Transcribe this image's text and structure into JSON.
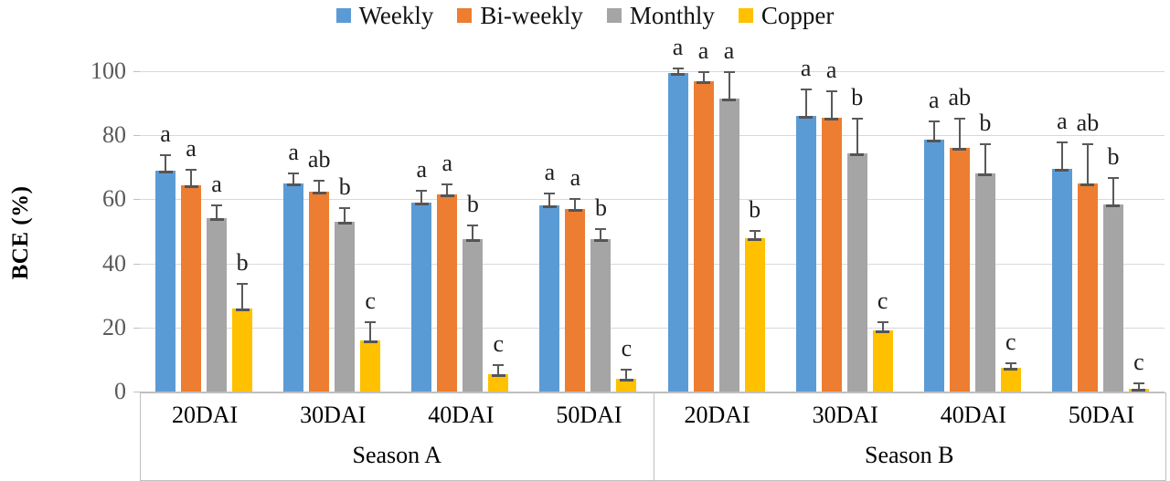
{
  "y_axis": {
    "label": "BCE (%)"
  },
  "chart_data": {
    "type": "bar",
    "title": "",
    "xlabel": "",
    "ylabel": "BCE (%)",
    "ylim": [
      0,
      100
    ],
    "yticks": [
      0,
      20,
      40,
      60,
      80,
      100
    ],
    "grid": true,
    "legend_position": "top",
    "categories": [
      "20DAI",
      "30DAI",
      "40DAI",
      "50DAI",
      "20DAI",
      "30DAI",
      "40DAI",
      "50DAI"
    ],
    "group_labels": [
      "Season A",
      "Season B"
    ],
    "series": [
      {
        "name": "Weekly",
        "color": "#5B9BD5",
        "values": [
          69,
          65,
          59,
          58,
          99.5,
          86,
          78.5,
          69.5
        ],
        "error_up": [
          5,
          3.5,
          4,
          4,
          1.5,
          8.5,
          6,
          8.5
        ],
        "sig_letters": [
          "a",
          "a",
          "a",
          "a",
          "a",
          "a",
          "a",
          "a"
        ]
      },
      {
        "name": "Bi-weekly",
        "color": "#ED7D31",
        "values": [
          64.5,
          62.5,
          61.5,
          57,
          97,
          85.5,
          76,
          65
        ],
        "error_up": [
          5,
          3.5,
          3.5,
          3.5,
          3,
          8.5,
          9.5,
          12.5
        ],
        "sig_letters": [
          "a",
          "ab",
          "a",
          "a",
          "a",
          "a",
          "ab",
          "ab"
        ]
      },
      {
        "name": "Monthly",
        "color": "#A5A5A5",
        "values": [
          54,
          53,
          47.5,
          47.5,
          91.5,
          74.5,
          68,
          58.5
        ],
        "error_up": [
          4.5,
          4.5,
          4.5,
          3.5,
          8.5,
          11,
          9.5,
          8.5
        ],
        "sig_letters": [
          "a",
          "b",
          "b",
          "b",
          "a",
          "b",
          "b",
          "b"
        ]
      },
      {
        "name": "Copper",
        "color": "#FFC000",
        "values": [
          26,
          16,
          5.5,
          4,
          48,
          19,
          7.5,
          0.8
        ],
        "error_up": [
          8,
          6,
          3,
          3,
          2.5,
          3,
          1.5,
          2
        ],
        "sig_letters": [
          "b",
          "c",
          "c",
          "c",
          "b",
          "c",
          "c",
          "c"
        ]
      }
    ],
    "colors": {
      "gridline": "#D9D9D9",
      "axis": "#BFBFBF",
      "error_bar": "#595959",
      "tick_text": "#595959"
    }
  }
}
